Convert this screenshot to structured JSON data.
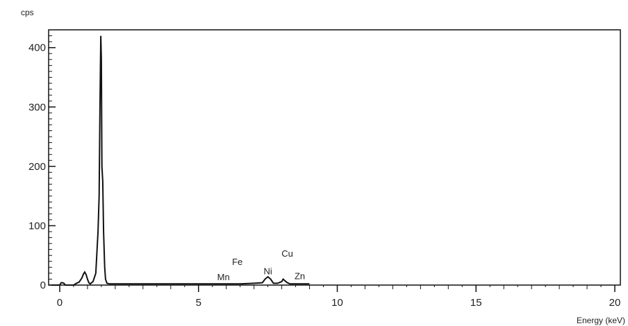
{
  "chart_data": {
    "type": "line",
    "title": "",
    "ylabel": "cps",
    "xlabel": "Energy (keV)",
    "xlim": [
      -0.4,
      20.2
    ],
    "ylim": [
      0,
      430
    ],
    "xticks": [
      0,
      5,
      10,
      15,
      20
    ],
    "yticks": [
      0,
      100,
      200,
      300,
      400
    ],
    "grid": false,
    "series": [
      {
        "x": [
          -0.3,
          0.0,
          0.05,
          0.1,
          0.15,
          0.2,
          0.5,
          0.6,
          0.7,
          0.8,
          0.85,
          0.9,
          0.95,
          1.0,
          1.05,
          1.1,
          1.2,
          1.3,
          1.38,
          1.42,
          1.45,
          1.48,
          1.5,
          1.52,
          1.55,
          1.58,
          1.62,
          1.65,
          1.7,
          1.8,
          2.0,
          3.0,
          4.0,
          5.0,
          6.0,
          6.5,
          7.0,
          7.3,
          7.4,
          7.5,
          7.6,
          7.7,
          7.85,
          8.0,
          8.05,
          8.1,
          8.2,
          8.3,
          8.5,
          9.0
        ],
        "y": [
          0,
          0,
          4,
          4,
          3,
          0,
          0,
          3,
          5,
          12,
          18,
          22,
          18,
          10,
          4,
          2,
          6,
          20,
          90,
          150,
          300,
          420,
          380,
          200,
          175,
          90,
          30,
          10,
          3,
          2,
          2,
          2,
          2,
          2,
          2,
          2,
          3,
          4,
          10,
          14,
          10,
          3,
          3,
          6,
          10,
          8,
          4,
          2,
          2,
          2
        ]
      }
    ],
    "annotations": [
      {
        "text": "Mn",
        "x": 5.9,
        "y": 8
      },
      {
        "text": "Fe",
        "x": 6.4,
        "y": 34
      },
      {
        "text": "Ni",
        "x": 7.5,
        "y": 18
      },
      {
        "text": "Cu",
        "x": 8.2,
        "y": 48
      },
      {
        "text": "Zn",
        "x": 8.65,
        "y": 10
      }
    ]
  }
}
